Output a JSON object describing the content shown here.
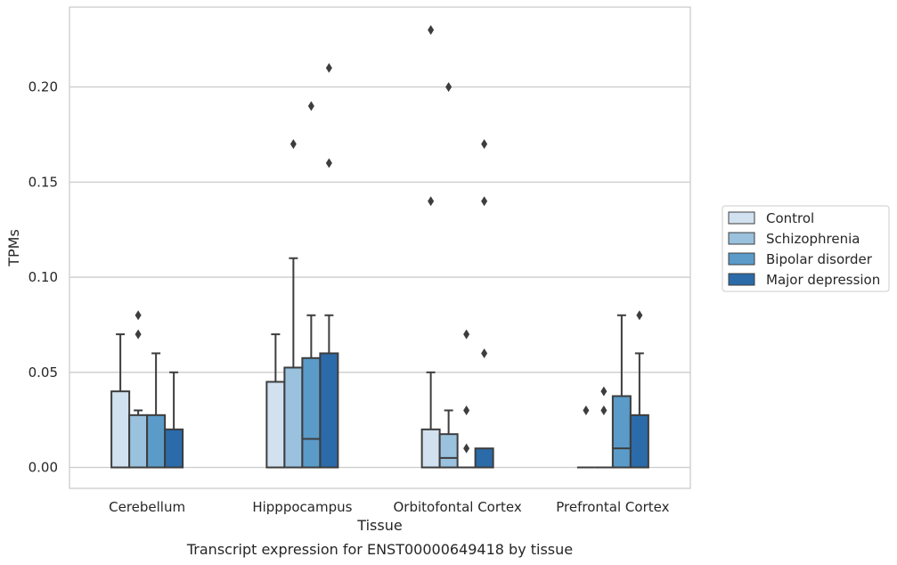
{
  "chart_data": {
    "type": "box",
    "title": "",
    "caption": "Transcript expression for ENST00000649418 by tissue",
    "xlabel": "Tissue",
    "ylabel": "TPMs",
    "ylim": [
      -0.011,
      0.242
    ],
    "yticks": [
      0.0,
      0.05,
      0.1,
      0.15,
      0.2
    ],
    "ytick_labels": [
      "0.00",
      "0.05",
      "0.10",
      "0.15",
      "0.20"
    ],
    "grid": "horizontal",
    "legend_position": "right",
    "categories": [
      "Cerebellum",
      "Hipppocampus",
      "Orbitofontal Cortex",
      "Prefrontal Cortex"
    ],
    "series": [
      {
        "name": "Control",
        "color": "#d2e1f0",
        "boxes": [
          {
            "q1": 0.0,
            "median": 0.0,
            "q3": 0.04,
            "whisker_low": 0.0,
            "whisker_high": 0.07,
            "outliers": []
          },
          {
            "q1": 0.0,
            "median": 0.0,
            "q3": 0.045,
            "whisker_low": 0.0,
            "whisker_high": 0.07,
            "outliers": []
          },
          {
            "q1": 0.0,
            "median": 0.0,
            "q3": 0.02,
            "whisker_low": 0.0,
            "whisker_high": 0.05,
            "outliers": [
              0.14,
              0.23
            ]
          },
          {
            "q1": 0.0,
            "median": 0.0,
            "q3": 0.0,
            "whisker_low": 0.0,
            "whisker_high": 0.0,
            "outliers": [
              0.03
            ]
          }
        ]
      },
      {
        "name": "Schizophrenia",
        "color": "#9ac1dd",
        "boxes": [
          {
            "q1": 0.0,
            "median": 0.0,
            "q3": 0.0275,
            "whisker_low": 0.0,
            "whisker_high": 0.03,
            "outliers": [
              0.07,
              0.08
            ]
          },
          {
            "q1": 0.0,
            "median": 0.0,
            "q3": 0.0525,
            "whisker_low": 0.0,
            "whisker_high": 0.11,
            "outliers": [
              0.17
            ]
          },
          {
            "q1": 0.0,
            "median": 0.005,
            "q3": 0.0175,
            "whisker_low": 0.0,
            "whisker_high": 0.03,
            "outliers": [
              0.2
            ]
          },
          {
            "q1": 0.0,
            "median": 0.0,
            "q3": 0.0,
            "whisker_low": 0.0,
            "whisker_high": 0.0,
            "outliers": [
              0.03,
              0.04
            ]
          }
        ]
      },
      {
        "name": "Bipolar disorder",
        "color": "#5a9bc9",
        "boxes": [
          {
            "q1": 0.0,
            "median": 0.0,
            "q3": 0.0275,
            "whisker_low": 0.0,
            "whisker_high": 0.06,
            "outliers": []
          },
          {
            "q1": 0.0,
            "median": 0.015,
            "q3": 0.0575,
            "whisker_low": 0.0,
            "whisker_high": 0.08,
            "outliers": [
              0.19
            ]
          },
          {
            "q1": 0.0,
            "median": 0.0,
            "q3": 0.0,
            "whisker_low": 0.0,
            "whisker_high": 0.0,
            "outliers": [
              0.01,
              0.03,
              0.07
            ]
          },
          {
            "q1": 0.0,
            "median": 0.01,
            "q3": 0.0375,
            "whisker_low": 0.0,
            "whisker_high": 0.08,
            "outliers": []
          }
        ]
      },
      {
        "name": "Major depression",
        "color": "#2b6ba9",
        "boxes": [
          {
            "q1": 0.0,
            "median": 0.0,
            "q3": 0.02,
            "whisker_low": 0.0,
            "whisker_high": 0.05,
            "outliers": []
          },
          {
            "q1": 0.0,
            "median": 0.0,
            "q3": 0.06,
            "whisker_low": 0.0,
            "whisker_high": 0.08,
            "outliers": [
              0.16,
              0.21
            ]
          },
          {
            "q1": 0.0,
            "median": 0.0,
            "q3": 0.01,
            "whisker_low": 0.0,
            "whisker_high": 0.01,
            "outliers": [
              0.06,
              0.14,
              0.17
            ]
          },
          {
            "q1": 0.0,
            "median": 0.0,
            "q3": 0.0275,
            "whisker_low": 0.0,
            "whisker_high": 0.06,
            "outliers": [
              0.08
            ]
          }
        ]
      }
    ]
  }
}
